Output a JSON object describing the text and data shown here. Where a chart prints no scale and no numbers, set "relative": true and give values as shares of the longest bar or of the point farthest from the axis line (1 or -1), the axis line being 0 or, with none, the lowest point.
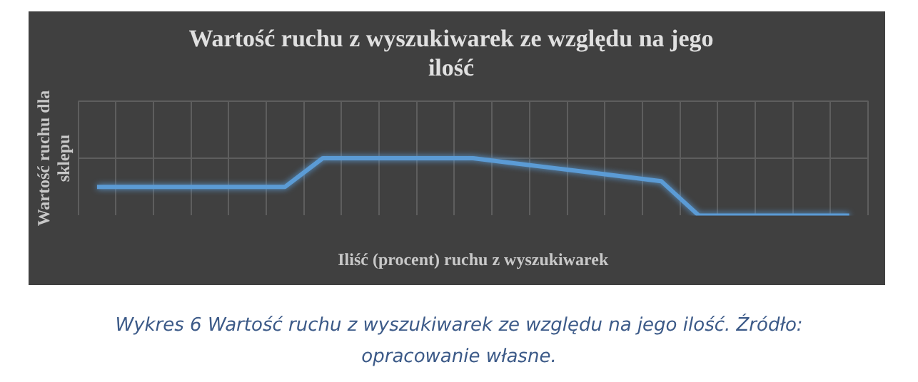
{
  "chart_data": {
    "type": "line",
    "title": "Wartość ruchu z wyszukiwarek ze względu na jego ilość",
    "xlabel": "Iliść (procent) ruchu z wyszukiwarek",
    "ylabel": "Wartość ruchu dla sklepu",
    "relative": true,
    "grid": true,
    "legend": false,
    "marker": "none",
    "line_style": "solid",
    "categories": [
      null,
      null,
      null,
      null,
      null,
      null,
      null,
      null,
      null,
      null,
      null,
      null,
      null,
      null,
      null,
      null,
      null,
      null,
      null,
      null,
      null
    ],
    "series": [
      {
        "color": "#5b9bd5",
        "values": [
          0.5,
          0.5,
          0.5,
          0.5,
          0.5,
          0.5,
          1,
          1,
          1,
          1,
          1,
          0.92,
          0.84,
          0.76,
          0.68,
          0.6,
          0,
          0,
          0,
          0,
          0
        ]
      }
    ],
    "annotations": [
      "Wykres 6 Wartość ruchu z wyszukiwarek ze względu na jego ilość. Źródło: opracowanie własne."
    ]
  }
}
